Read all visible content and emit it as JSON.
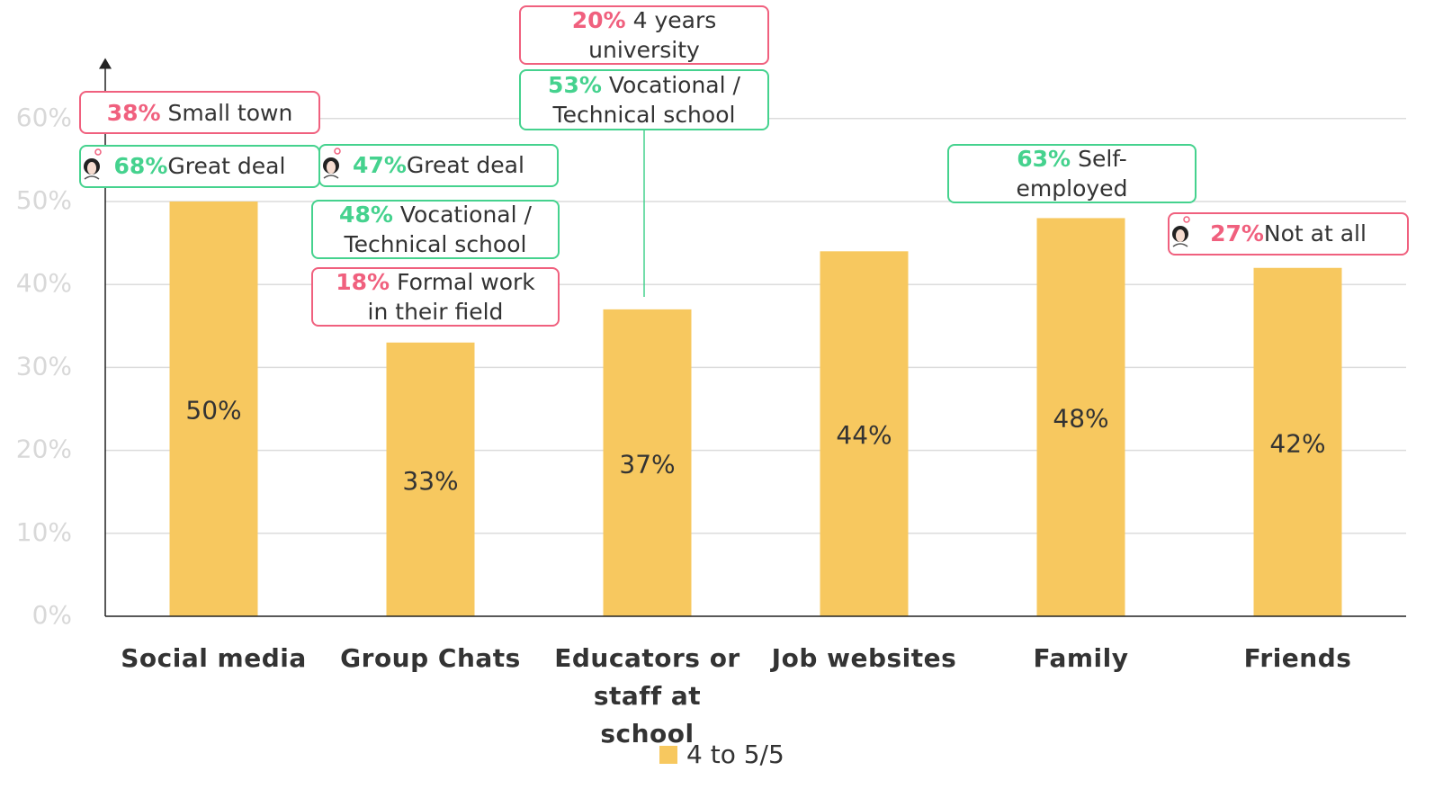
{
  "chart_data": {
    "type": "bar",
    "categories": [
      "Social media",
      "Group Chats",
      "Educators or staff at school",
      "Job websites",
      "Family",
      "Friends"
    ],
    "series": [
      {
        "name": "4 to 5/5",
        "color": "#f7c85f",
        "values": [
          50,
          33,
          37,
          44,
          48,
          42
        ],
        "value_labels": [
          "50%",
          "33%",
          "37%",
          "44%",
          "48%",
          "42%"
        ]
      }
    ],
    "ylim": [
      0,
      66
    ],
    "yticks": [
      {
        "value": 0,
        "label": "0%"
      },
      {
        "value": 10,
        "label": "10%"
      },
      {
        "value": 20,
        "label": "20%"
      },
      {
        "value": 30,
        "label": "30%"
      },
      {
        "value": 40,
        "label": "40%"
      },
      {
        "value": 50,
        "label": "50%"
      },
      {
        "value": 60,
        "label": "60%"
      }
    ],
    "grid": true,
    "annotations": [
      {
        "highlight": "38%",
        "text": [
          "Small town"
        ],
        "color": "#f0607e"
      },
      {
        "highlight": "68%",
        "text": [
          "Great deal"
        ],
        "color": "#45d28e"
      },
      {
        "highlight": "47%",
        "text": [
          "Great deal"
        ],
        "color": "#45d28e"
      },
      {
        "highlight": "48%",
        "text": [
          "Vocational /",
          "Technical school"
        ],
        "color": "#45d28e"
      },
      {
        "highlight": "18%",
        "text": [
          "Formal work",
          "in their field"
        ],
        "color": "#f0607e"
      },
      {
        "highlight": "20%",
        "text": [
          "4 years",
          "university"
        ],
        "color": "#f0607e"
      },
      {
        "highlight": "53%",
        "text": [
          "Vocational /",
          "Technical school"
        ],
        "color": "#45d28e"
      },
      {
        "highlight": "63%",
        "text": [
          "Self-",
          "employed"
        ],
        "color": "#45d28e"
      },
      {
        "highlight": "27%",
        "text": [
          "Not at all"
        ],
        "color": "#f0607e"
      }
    ]
  }
}
